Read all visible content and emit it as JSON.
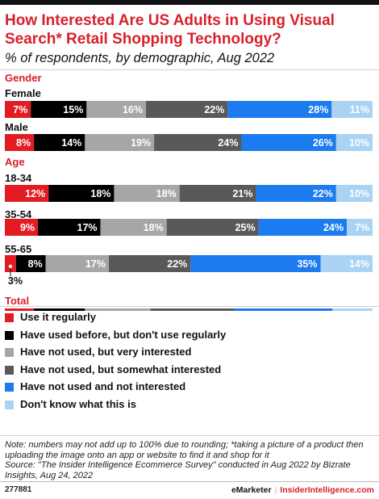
{
  "header": {
    "title": "How Interested Are US Adults in Using Visual Search* Retail Shopping Technology?",
    "subtitle": "% of respondents, by demographic, Aug 2022"
  },
  "chart_data": {
    "type": "bar",
    "orientation": "horizontal",
    "stacked": true,
    "groups": [
      {
        "label": "Gender",
        "rows": [
          {
            "label": "Female",
            "values": [
              7,
              15,
              16,
              22,
              28,
              11
            ]
          },
          {
            "label": "Male",
            "values": [
              8,
              14,
              19,
              24,
              26,
              10
            ]
          }
        ]
      },
      {
        "label": "Age",
        "rows": [
          {
            "label": "18-34",
            "values": [
              12,
              18,
              18,
              21,
              22,
              10
            ]
          },
          {
            "label": "35-54",
            "values": [
              9,
              17,
              18,
              25,
              24,
              7
            ]
          },
          {
            "label": "55-65",
            "values": [
              3,
              8,
              17,
              22,
              35,
              14
            ]
          }
        ]
      },
      {
        "label": "Total",
        "rows": [
          {
            "label": "",
            "values": [
              8,
              14,
              18,
              23,
              27,
              11
            ]
          }
        ]
      }
    ],
    "series": [
      {
        "name": "Use it regularly",
        "color": "#e31c23",
        "label_color": "#ffffff"
      },
      {
        "name": "Have used before, but don't use regularly",
        "color": "#000000",
        "label_color": "#ffffff"
      },
      {
        "name": "Have not used, but very interested",
        "color": "#a6a6a6",
        "label_color": "#ffffff"
      },
      {
        "name": "Have not used, but somewhat interested",
        "color": "#595959",
        "label_color": "#ffffff"
      },
      {
        "name": "Have not used and not interested",
        "color": "#1b7bef",
        "label_color": "#ffffff"
      },
      {
        "name": "Don't know what this is",
        "color": "#a9d2f3",
        "label_color": "#ffffff"
      }
    ],
    "value_suffix": "%",
    "group_label_color": "#d8202a",
    "xlim": [
      0,
      100
    ]
  },
  "note": "Note: numbers may not add up to 100% due to rounding; *taking a picture of a product then uploading the image onto an app or website to find it and shop for it\nSource: \"The Insider Intelligence Ecommerce Survey\" conducted in Aug 2022 by Bizrate Insights, Aug 24, 2022",
  "footer": {
    "chart_id": "277881",
    "brand": "eMarketer",
    "brand2": "InsiderIntelligence.com"
  }
}
